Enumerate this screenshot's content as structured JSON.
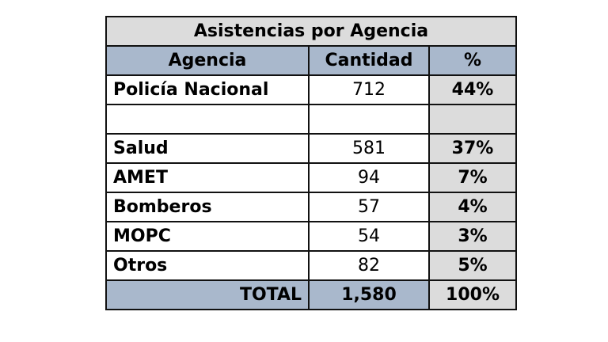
{
  "title": "Asistencias por Agencia",
  "headers": {
    "agency": "Agencia",
    "quantity": "Cantidad",
    "percent": "%"
  },
  "rows": [
    {
      "agency": "Policía Nacional",
      "quantity": "712",
      "percent": "44%"
    },
    {
      "agency": "",
      "quantity": "",
      "percent": ""
    },
    {
      "agency": "Salud",
      "quantity": "581",
      "percent": "37%"
    },
    {
      "agency": "AMET",
      "quantity": "94",
      "percent": "7%"
    },
    {
      "agency": "Bomberos",
      "quantity": "57",
      "percent": "4%"
    },
    {
      "agency": "MOPC",
      "quantity": "54",
      "percent": "3%"
    },
    {
      "agency": "Otros",
      "quantity": "82",
      "percent": "5%"
    }
  ],
  "total": {
    "label": "TOTAL",
    "quantity": "1,580",
    "percent": "100%"
  },
  "colors": {
    "header": "#a9b8cc",
    "title": "#dcdcdc",
    "percent_column": "#dcdcdc"
  }
}
